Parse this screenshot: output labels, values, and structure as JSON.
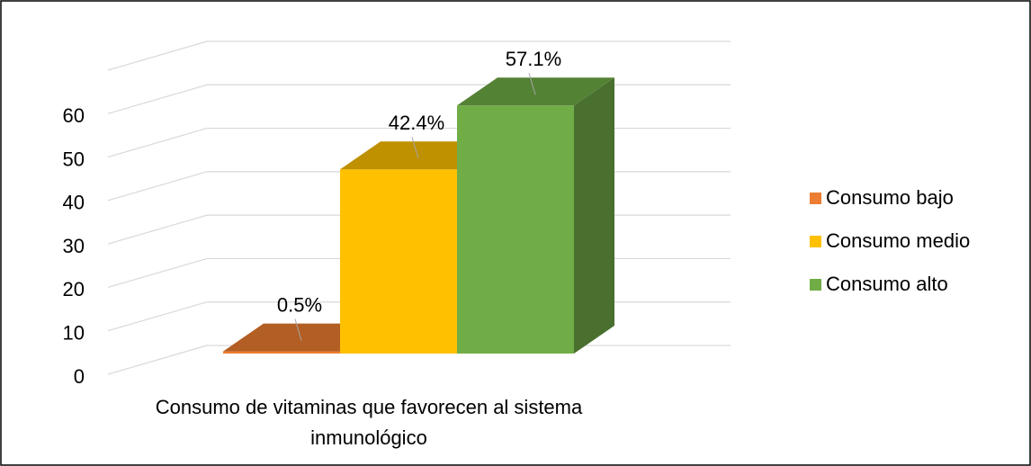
{
  "chart_data": {
    "type": "bar3d",
    "categories": [
      "Consumo de vitaminas que favorecen al sistema inmunológico"
    ],
    "series": [
      {
        "name": "Consumo bajo",
        "color": "#ed7d31",
        "values": [
          0.5
        ],
        "value_labels": [
          "0.5%"
        ]
      },
      {
        "name": "Consumo medio",
        "color": "#ffc000",
        "values": [
          42.4
        ],
        "value_labels": [
          "42.4%"
        ]
      },
      {
        "name": "Consumo alto",
        "color": "#70ad47",
        "values": [
          57.1
        ],
        "value_labels": [
          "57.1%"
        ]
      }
    ],
    "ylim": [
      0,
      70
    ],
    "yticks": [
      0,
      10,
      20,
      30,
      40,
      50,
      60
    ],
    "grid": true,
    "legend": "right"
  }
}
